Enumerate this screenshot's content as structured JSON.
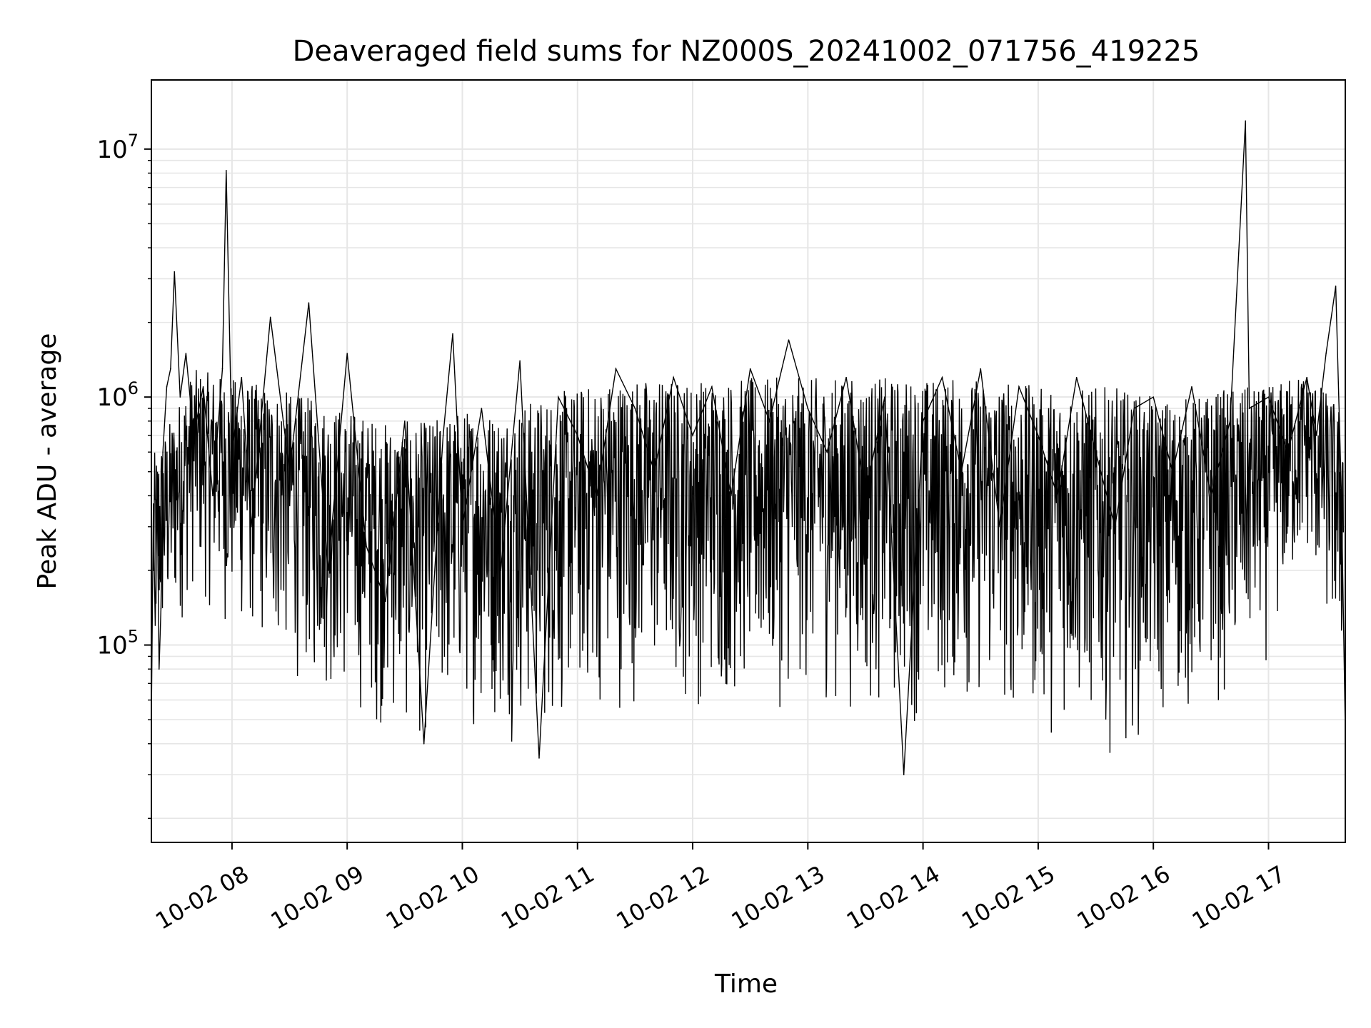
{
  "chart_data": {
    "type": "line",
    "title": "Deaveraged field sums for NZ000S_20241002_071756_419225",
    "xlabel": "Time",
    "ylabel": "Peak ADU - average",
    "yscale": "log",
    "grid": true,
    "line_color": "#000000",
    "grid_color": "#e6e6e6",
    "xlim": [
      "2024-10-02 07:18",
      "2024-10-02 17:40"
    ],
    "ylim": [
      16000,
      19000000
    ],
    "x_ticks": [
      {
        "t": "2024-10-02 08:00",
        "label": "10-02 08"
      },
      {
        "t": "2024-10-02 09:00",
        "label": "10-02 09"
      },
      {
        "t": "2024-10-02 10:00",
        "label": "10-02 10"
      },
      {
        "t": "2024-10-02 11:00",
        "label": "10-02 11"
      },
      {
        "t": "2024-10-02 12:00",
        "label": "10-02 12"
      },
      {
        "t": "2024-10-02 13:00",
        "label": "10-02 13"
      },
      {
        "t": "2024-10-02 14:00",
        "label": "10-02 14"
      },
      {
        "t": "2024-10-02 15:00",
        "label": "10-02 15"
      },
      {
        "t": "2024-10-02 16:00",
        "label": "10-02 16"
      },
      {
        "t": "2024-10-02 17:00",
        "label": "10-02 17"
      }
    ],
    "y_ticks": [
      {
        "value": 100000,
        "base": "10",
        "exp": "5"
      },
      {
        "value": 1000000,
        "base": "10",
        "exp": "6"
      },
      {
        "value": 10000000,
        "base": "10",
        "exp": "7"
      }
    ],
    "series": [
      {
        "x": [
          "2024-10-02 07:18",
          "2024-10-02 07:19",
          "2024-10-02 07:20",
          "2024-10-02 07:21",
          "2024-10-02 07:22",
          "2024-10-02 07:23",
          "2024-10-02 07:24",
          "2024-10-02 07:26",
          "2024-10-02 07:28",
          "2024-10-02 07:30",
          "2024-10-02 07:33",
          "2024-10-02 07:36",
          "2024-10-02 07:40",
          "2024-10-02 07:45",
          "2024-10-02 07:50",
          "2024-10-02 07:55",
          "2024-10-02 07:57",
          "2024-10-02 08:00",
          "2024-10-02 08:05",
          "2024-10-02 08:10",
          "2024-10-02 08:20",
          "2024-10-02 08:30",
          "2024-10-02 08:40",
          "2024-10-02 08:50",
          "2024-10-02 09:00",
          "2024-10-02 09:10",
          "2024-10-02 09:20",
          "2024-10-02 09:30",
          "2024-10-02 09:40",
          "2024-10-02 09:50",
          "2024-10-02 09:55",
          "2024-10-02 10:00",
          "2024-10-02 10:10",
          "2024-10-02 10:20",
          "2024-10-02 10:30",
          "2024-10-02 10:40",
          "2024-10-02 10:50",
          "2024-10-02 11:00",
          "2024-10-02 11:10",
          "2024-10-02 11:20",
          "2024-10-02 11:30",
          "2024-10-02 11:40",
          "2024-10-02 11:50",
          "2024-10-02 12:00",
          "2024-10-02 12:10",
          "2024-10-02 12:20",
          "2024-10-02 12:30",
          "2024-10-02 12:40",
          "2024-10-02 12:50",
          "2024-10-02 13:00",
          "2024-10-02 13:10",
          "2024-10-02 13:20",
          "2024-10-02 13:30",
          "2024-10-02 13:40",
          "2024-10-02 13:50",
          "2024-10-02 14:00",
          "2024-10-02 14:10",
          "2024-10-02 14:20",
          "2024-10-02 14:30",
          "2024-10-02 14:40",
          "2024-10-02 14:50",
          "2024-10-02 15:00",
          "2024-10-02 15:10",
          "2024-10-02 15:20",
          "2024-10-02 15:30",
          "2024-10-02 15:40",
          "2024-10-02 15:50",
          "2024-10-02 16:00",
          "2024-10-02 16:10",
          "2024-10-02 16:20",
          "2024-10-02 16:30",
          "2024-10-02 16:40",
          "2024-10-02 16:48",
          "2024-10-02 16:50",
          "2024-10-02 17:00",
          "2024-10-02 17:10",
          "2024-10-02 17:20",
          "2024-10-02 17:25",
          "2024-10-02 17:30",
          "2024-10-02 17:35",
          "2024-10-02 17:38",
          "2024-10-02 17:40"
        ],
        "y": [
          50000,
          350000,
          120000,
          420000,
          80000,
          140000,
          600000,
          1100000,
          1300000,
          3200000,
          1000000,
          1500000,
          700000,
          1100000,
          400000,
          1300000,
          8200000,
          600000,
          1200000,
          300000,
          2100000,
          500000,
          2400000,
          200000,
          1500000,
          250000,
          150000,
          800000,
          40000,
          700000,
          1800000,
          300000,
          900000,
          200000,
          1400000,
          35000,
          1000000,
          700000,
          400000,
          1300000,
          900000,
          500000,
          1200000,
          700000,
          1100000,
          400000,
          1300000,
          800000,
          1700000,
          900000,
          600000,
          1200000,
          400000,
          1000000,
          30000,
          800000,
          1200000,
          500000,
          1300000,
          300000,
          1100000,
          700000,
          400000,
          1200000,
          600000,
          300000,
          900000,
          1000000,
          500000,
          1100000,
          400000,
          800000,
          13000000,
          900000,
          1000000,
          600000,
          1200000,
          700000,
          1500000,
          2800000,
          400000,
          45000
        ]
      }
    ],
    "envelope": {
      "x": [
        "2024-10-02 07:20",
        "2024-10-02 07:40",
        "2024-10-02 08:00",
        "2024-10-02 08:20",
        "2024-10-02 08:40",
        "2024-10-02 09:00",
        "2024-10-02 09:20",
        "2024-10-02 09:40",
        "2024-10-02 10:00",
        "2024-10-02 10:20",
        "2024-10-02 10:40",
        "2024-10-02 11:00",
        "2024-10-02 11:20",
        "2024-10-02 11:40",
        "2024-10-02 12:00",
        "2024-10-02 12:20",
        "2024-10-02 12:40",
        "2024-10-02 13:00",
        "2024-10-02 13:20",
        "2024-10-02 13:40",
        "2024-10-02 14:00",
        "2024-10-02 14:20",
        "2024-10-02 14:40",
        "2024-10-02 15:00",
        "2024-10-02 15:20",
        "2024-10-02 15:40",
        "2024-10-02 16:00",
        "2024-10-02 16:20",
        "2024-10-02 16:40",
        "2024-10-02 17:00",
        "2024-10-02 17:20",
        "2024-10-02 17:38"
      ],
      "high": [
        600000,
        1300000,
        1200000,
        1100000,
        1000000,
        900000,
        800000,
        800000,
        900000,
        900000,
        1000000,
        1100000,
        1200000,
        1200000,
        1200000,
        1200000,
        1200000,
        1200000,
        1200000,
        1200000,
        1200000,
        1200000,
        1200000,
        1100000,
        1100000,
        1100000,
        1000000,
        1000000,
        1100000,
        1100000,
        1300000,
        900000
      ],
      "low": [
        60000,
        150000,
        100000,
        80000,
        60000,
        50000,
        40000,
        35000,
        45000,
        40000,
        35000,
        45000,
        50000,
        55000,
        50000,
        50000,
        50000,
        55000,
        50000,
        45000,
        45000,
        50000,
        45000,
        40000,
        40000,
        35000,
        40000,
        45000,
        55000,
        80000,
        200000,
        60000
      ]
    }
  }
}
